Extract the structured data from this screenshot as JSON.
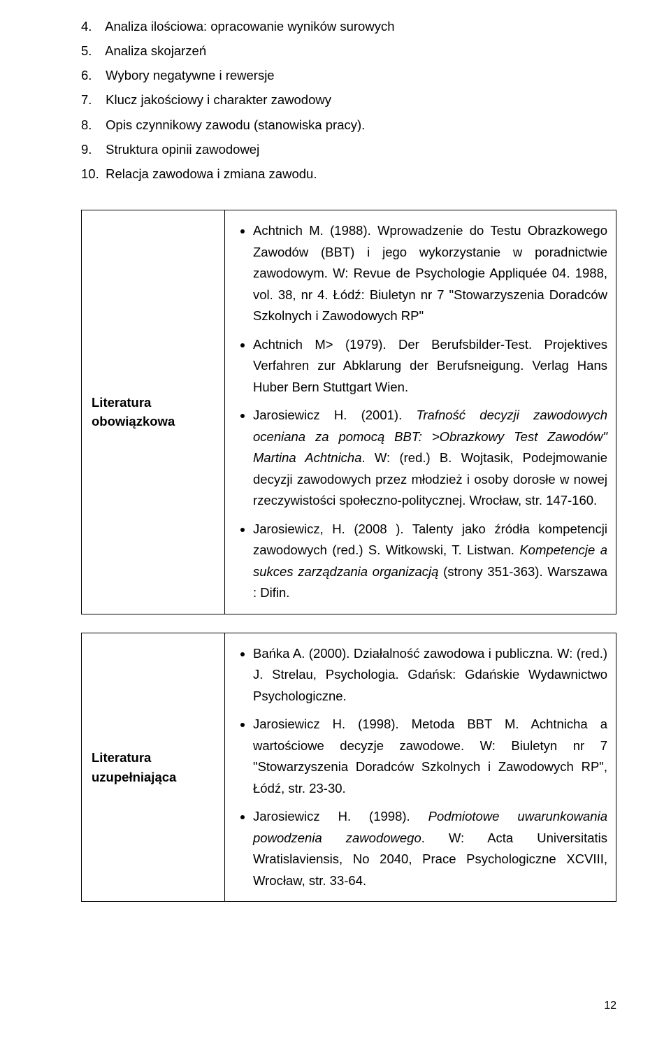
{
  "numbered_items": [
    {
      "n": "4.",
      "text": "Analiza ilościowa: opracowanie wyników surowych"
    },
    {
      "n": "5.",
      "text": "Analiza skojarzeń"
    },
    {
      "n": "6.",
      "text": "Wybory negatywne i rewersje"
    },
    {
      "n": "7.",
      "text": "Klucz jakościowy i charakter zawodowy"
    },
    {
      "n": "8.",
      "text": "Opis czynnikowy zawodu (stanowiska pracy)."
    },
    {
      "n": "9.",
      "text": "Struktura opinii zawodowej"
    },
    {
      "n": "10.",
      "text": "Relacja zawodowa i zmiana zawodu."
    }
  ],
  "table1": {
    "left": "Literatura obowiązkowa",
    "bullets": [
      {
        "parts": [
          {
            "t": "Achtnich M. (1988). Wprowadzenie do Testu Obrazkowego Zawodów (BBT) i jego wykorzystanie w poradnictwie zawodowym. W: Revue de Psychologie Appliquée 04. 1988, vol. 38, nr 4. Łódź: Biuletyn nr 7 \"Stowarzyszenia Doradców Szkolnych i Zawodowych RP\""
          }
        ]
      },
      {
        "parts": [
          {
            "t": "Achtnich M> (1979). Der Berufsbilder-Test. Projektives Verfahren zur Abklarung der Berufsneigung. Verlag Hans Huber Bern Stuttgart Wien."
          }
        ]
      },
      {
        "parts": [
          {
            "t": "Jarosiewicz H. (2001). "
          },
          {
            "t": "Trafność decyzji zawodowych oceniana za pomocą BBT: >Obrazkowy Test Zawodów\" Martina Achtnicha",
            "i": true
          },
          {
            "t": ". W: (red.) B. Wojtasik, Podejmowanie decyzji zawodowych przez młodzież i osoby dorosłe w nowej rzeczywistości społeczno-politycznej. Wrocław, str. 147-160."
          }
        ]
      },
      {
        "parts": [
          {
            "t": "Jarosiewicz, H. (2008 ). Talenty jako źródła kompetencji zawodowych (red.) S. Witkowski, T. Listwan. "
          },
          {
            "t": "Kompetencje a sukces zarządzania organizacją",
            "i": true
          },
          {
            "t": " (strony 351-363). Warszawa : Difin."
          }
        ]
      }
    ]
  },
  "table2": {
    "left": "Literatura uzupełniająca",
    "bullets": [
      {
        "parts": [
          {
            "t": "Bańka A. (2000). Działalność zawodowa i publiczna. W: (red.) J. Strelau, Psychologia. Gdańsk: Gdańskie Wydawnictwo Psychologiczne."
          }
        ]
      },
      {
        "parts": [
          {
            "t": "Jarosiewicz H. (1998). Metoda BBT M. Achtnicha a wartościowe decyzje zawodowe. W: Biuletyn nr 7 \"Stowarzyszenia Doradców Szkolnych i Zawodowych RP\", Łódź, str. 23-30."
          }
        ]
      },
      {
        "parts": [
          {
            "t": "Jarosiewicz H. (1998). "
          },
          {
            "t": "Podmiotowe uwarunkowania powodzenia zawodowego",
            "i": true
          },
          {
            "t": ". W: Acta Universitatis Wratislaviensis, No 2040, Prace Psychologiczne XCVIII, Wrocław, str. 33-64."
          }
        ]
      }
    ]
  },
  "page_number": "12"
}
